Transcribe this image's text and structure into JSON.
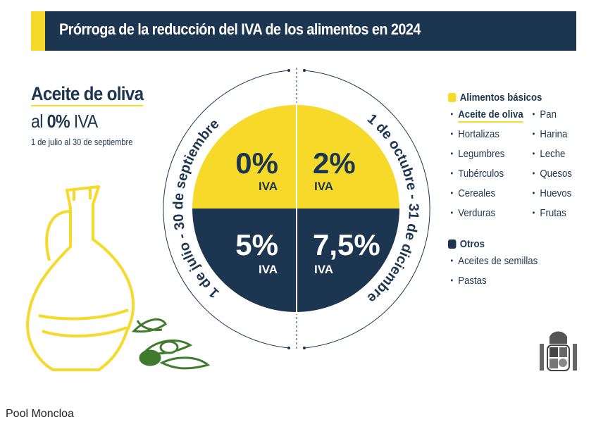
{
  "title": "Prórroga de la reducción del IVA de los alimentos en 2024",
  "highlight": {
    "product": "Aceite de oliva",
    "rate_prefix": "al",
    "rate": "0%",
    "rate_suffix": "IVA",
    "period": "1 de julio al 30 de septiembre"
  },
  "circle": {
    "left_period": "1 de julio - 30 de septiembre",
    "right_period": "1 de octubre - 31 de diciembre",
    "quadrants": [
      {
        "rate": "0%",
        "label": "IVA"
      },
      {
        "rate": "2%",
        "label": "IVA"
      },
      {
        "rate": "5%",
        "label": "IVA"
      },
      {
        "rate": "7,5%",
        "label": "IVA"
      }
    ]
  },
  "legend": {
    "basic": {
      "label": "Alimentos básicos",
      "color": "#f7d92a",
      "items": [
        "Aceite de oliva",
        "Pan",
        "Hortalizas",
        "Harina",
        "Legumbres",
        "Leche",
        "Tubérculos",
        "Quesos",
        "Cereales",
        "Huevos",
        "Verduras",
        "Frutas"
      ]
    },
    "other": {
      "label": "Otros",
      "color": "#1c3550",
      "items": [
        "Aceites de semillas",
        "Pastas"
      ]
    }
  },
  "credit": "Pool Moncloa",
  "colors": {
    "navy": "#1c3550",
    "yellow": "#f7d92a",
    "green": "#3f7a2e"
  }
}
